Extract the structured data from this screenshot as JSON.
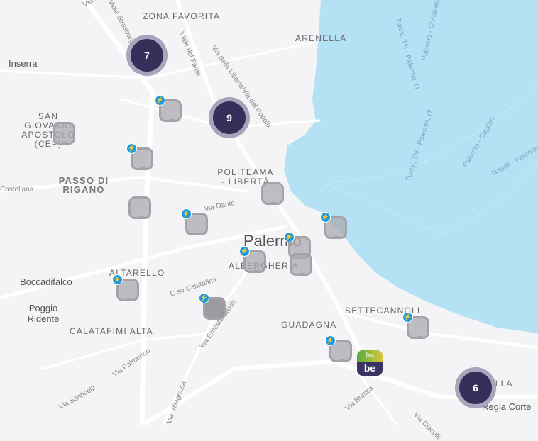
{
  "colors": {
    "sea": "#b5e1f4",
    "land": "#f4f4f6",
    "road": "#ffffff",
    "cluster": "#34305a",
    "bolt": "#1e9be0"
  },
  "districts": [
    "ZONA FAVORITA",
    "ARENELLA",
    "SAN GIOVANNI APOSTOLO (CEP)",
    "PASSO DI RIGANO",
    "POLITEAMA - LIBERTÀ",
    "ALBERGHERIA",
    "ALTARELLO",
    "CALATAFIMI ALTA",
    "GUADAGNA",
    "SETTECANNOLI",
    "VILLA"
  ],
  "places": [
    "Inserra",
    "Boccadifalco",
    "Poggio Ridente",
    "Regia Corte"
  ],
  "city": "Palermo",
  "roads": [
    "Viale Strasburgo",
    "Via Malfa",
    "Viale del Fante",
    "Via della Libertà/Via del Popolo",
    "Via Dante",
    "C.so Calatafimi",
    "Via Ernesto Basile",
    "Via Palmerino",
    "Via Santicelli",
    "Via Brasca",
    "Via Ciaculli",
    "Castellana",
    "Via Villagrazia"
  ],
  "ferry_routes": [
    "Tunisi, TN - Palermo, IT",
    "Palermo - Civitavecchia",
    "Tunisi, TN - Palermo, IT",
    "Palermo - Cagliari",
    "Napoli - Palermo"
  ],
  "clusters": [
    {
      "count": "7"
    },
    {
      "count": "9"
    },
    {
      "count": "6"
    }
  ],
  "stations": [
    {
      "charging": true
    },
    {
      "charging": true
    },
    {
      "charging": false
    },
    {
      "charging": false
    },
    {
      "charging": true
    },
    {
      "charging": false
    },
    {
      "charging": true
    },
    {
      "charging": true
    },
    {
      "charging": false
    },
    {
      "charging": true
    },
    {
      "charging": true
    },
    {
      "charging": true
    },
    {
      "charging": true
    },
    {
      "charging": true
    }
  ],
  "brand_marker": {
    "label": "be",
    "icon": "bed-icon"
  }
}
